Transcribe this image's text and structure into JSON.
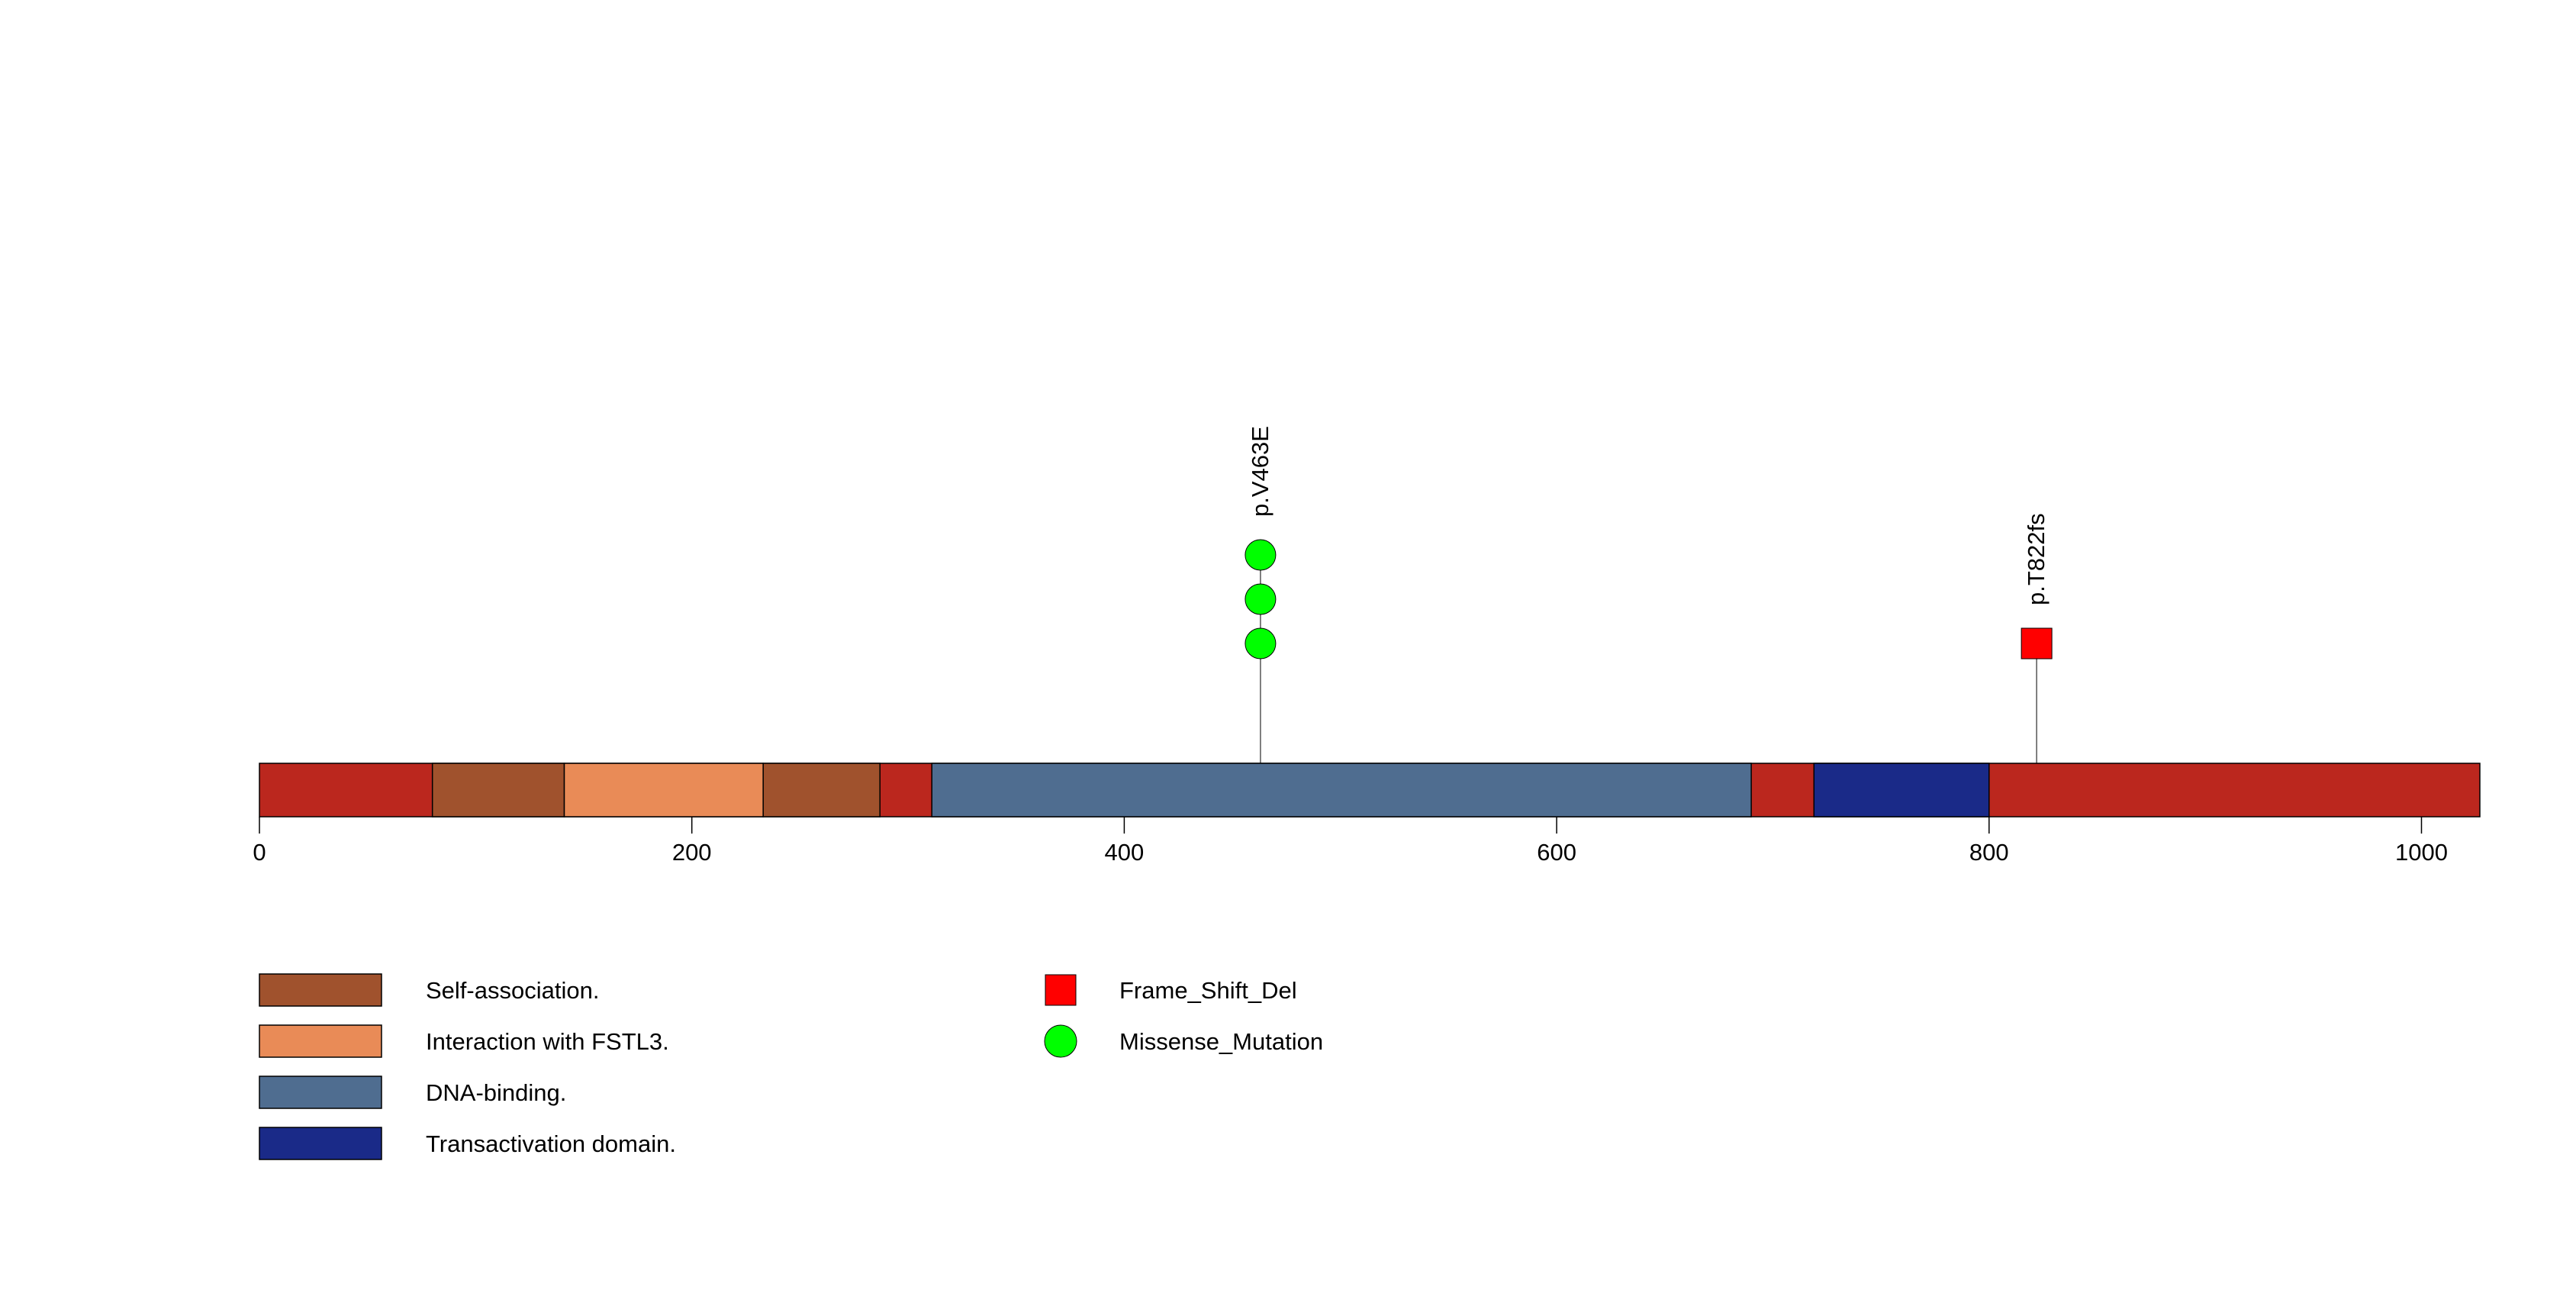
{
  "protein": {
    "length": 1027,
    "backbone_color": "#BB271E"
  },
  "domains": [
    {
      "name": "Self-association.",
      "start": 80,
      "end": 141,
      "color": "#A0522D"
    },
    {
      "name": "Interaction with FSTL3.",
      "start": 141,
      "end": 233,
      "color": "#E98B57"
    },
    {
      "name": "Self-association.",
      "start": 233,
      "end": 287,
      "color": "#A0522D"
    },
    {
      "name": "DNA-binding.",
      "start": 311,
      "end": 690,
      "color": "#4F6D90"
    },
    {
      "name": "Transactivation domain.",
      "start": 719,
      "end": 800,
      "color": "#1A2A88"
    }
  ],
  "axis": {
    "min": 0,
    "max": 1027,
    "ticks": [
      0,
      200,
      400,
      600,
      800,
      1000
    ],
    "tick_labels": [
      "0",
      "200",
      "400",
      "600",
      "800",
      "1000"
    ]
  },
  "mutations": [
    {
      "label": "p.V463E",
      "position": 463,
      "count": 3,
      "type": "Missense_Mutation"
    },
    {
      "label": "p.T822fs",
      "position": 822,
      "count": 1,
      "type": "Frame_Shift_Del"
    }
  ],
  "mutation_types": {
    "Missense_Mutation": {
      "shape": "circle",
      "color": "#00FF00"
    },
    "Frame_Shift_Del": {
      "shape": "square",
      "color": "#FF0000"
    }
  },
  "legend": {
    "domains": [
      {
        "label": "Self-association.",
        "color": "#A0522D"
      },
      {
        "label": "Interaction with FSTL3.",
        "color": "#E98B57"
      },
      {
        "label": "DNA-binding.",
        "color": "#4F6D90"
      },
      {
        "label": "Transactivation domain.",
        "color": "#1A2A88"
      }
    ],
    "mutations": [
      {
        "label": "Frame_Shift_Del",
        "shape": "square",
        "color": "#FF0000"
      },
      {
        "label": "Missense_Mutation",
        "shape": "circle",
        "color": "#00FF00"
      }
    ]
  }
}
